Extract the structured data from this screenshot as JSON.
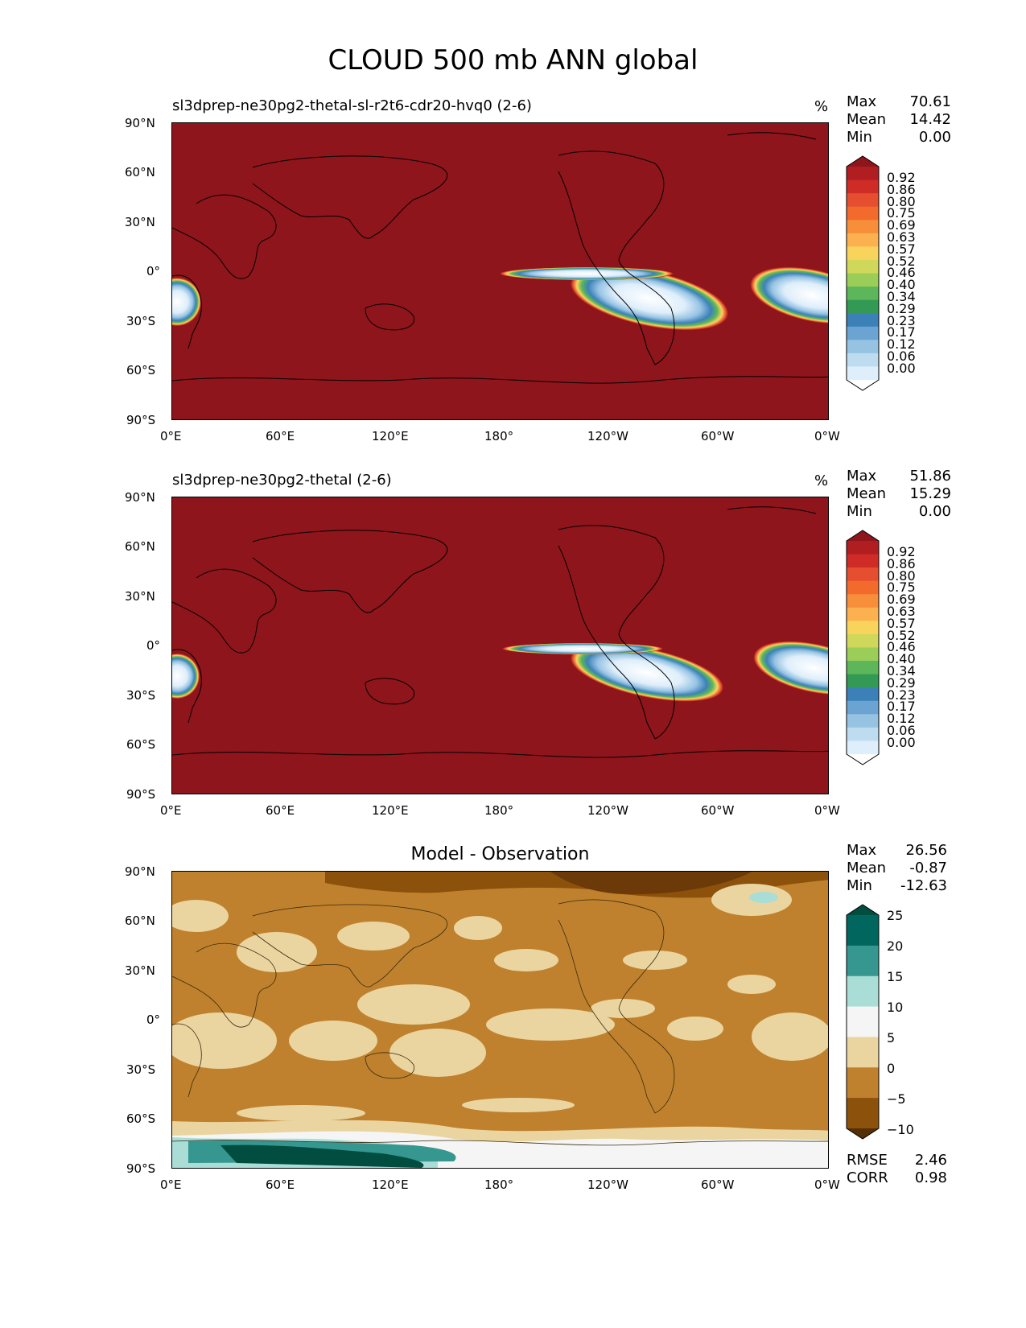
{
  "figure_title": "CLOUD 500 mb ANN global",
  "axes": {
    "lat_ticks": [
      "90°N",
      "60°N",
      "30°N",
      "0°",
      "30°S",
      "60°S",
      "90°S"
    ],
    "lon_ticks": [
      "0°E",
      "60°E",
      "120°E",
      "180°",
      "120°W",
      "60°W",
      "0°W"
    ]
  },
  "panels": [
    {
      "title": "sl3dprep-ne30pg2-thetal-sl-r2t6-cdr20-hvq0 (2-6)",
      "unit": "%",
      "stats": [
        {
          "label": "Max",
          "value": "70.61"
        },
        {
          "label": "Mean",
          "value": "14.42"
        },
        {
          "label": "Min",
          "value": "0.00"
        }
      ],
      "colorbar": {
        "labels": [
          "0.92",
          "0.86",
          "0.80",
          "0.75",
          "0.69",
          "0.63",
          "0.57",
          "0.52",
          "0.46",
          "0.40",
          "0.34",
          "0.29",
          "0.23",
          "0.17",
          "0.12",
          "0.06",
          "0.00"
        ],
        "colors": [
          "#8e151c",
          "#b01e22",
          "#cf2b27",
          "#e54e2e",
          "#f26b2d",
          "#f78e3a",
          "#fbb14f",
          "#f8d45d",
          "#cfd85a",
          "#9bce59",
          "#5db659",
          "#339a55",
          "#3b81b8",
          "#6ba4d2",
          "#97c3e3",
          "#bedcef",
          "#deeefa",
          "#ffffff"
        ]
      }
    },
    {
      "title": "sl3dprep-ne30pg2-thetal (2-6)",
      "unit": "%",
      "stats": [
        {
          "label": "Max",
          "value": "51.86"
        },
        {
          "label": "Mean",
          "value": "15.29"
        },
        {
          "label": "Min",
          "value": "0.00"
        }
      ],
      "colorbar": {
        "labels": [
          "0.92",
          "0.86",
          "0.80",
          "0.75",
          "0.69",
          "0.63",
          "0.57",
          "0.52",
          "0.46",
          "0.40",
          "0.34",
          "0.29",
          "0.23",
          "0.17",
          "0.12",
          "0.06",
          "0.00"
        ],
        "colors": [
          "#8e151c",
          "#b01e22",
          "#cf2b27",
          "#e54e2e",
          "#f26b2d",
          "#f78e3a",
          "#fbb14f",
          "#f8d45d",
          "#cfd85a",
          "#9bce59",
          "#5db659",
          "#339a55",
          "#3b81b8",
          "#6ba4d2",
          "#97c3e3",
          "#bedcef",
          "#deeefa",
          "#ffffff"
        ]
      }
    },
    {
      "title": "Model - Observation",
      "unit": "",
      "stats": [
        {
          "label": "Max",
          "value": "26.56"
        },
        {
          "label": "Mean",
          "value": "-0.87"
        },
        {
          "label": "Min",
          "value": "-12.63"
        }
      ],
      "colorbar": {
        "labels": [
          "25",
          "20",
          "15",
          "10",
          "5",
          "0",
          "−5",
          "−10"
        ],
        "colors": [
          "#014d40",
          "#01665e",
          "#35978f",
          "#a9ddd6",
          "#f5f5f5",
          "#ead5a1",
          "#bf812d",
          "#8c510a",
          "#543005"
        ]
      },
      "metrics": [
        {
          "label": "RMSE",
          "value": "2.46"
        },
        {
          "label": "CORR",
          "value": "0.98"
        }
      ]
    }
  ],
  "colors": {
    "map_fill_panels_1_2": "#8e151c",
    "diff_background": "#bf812d"
  }
}
